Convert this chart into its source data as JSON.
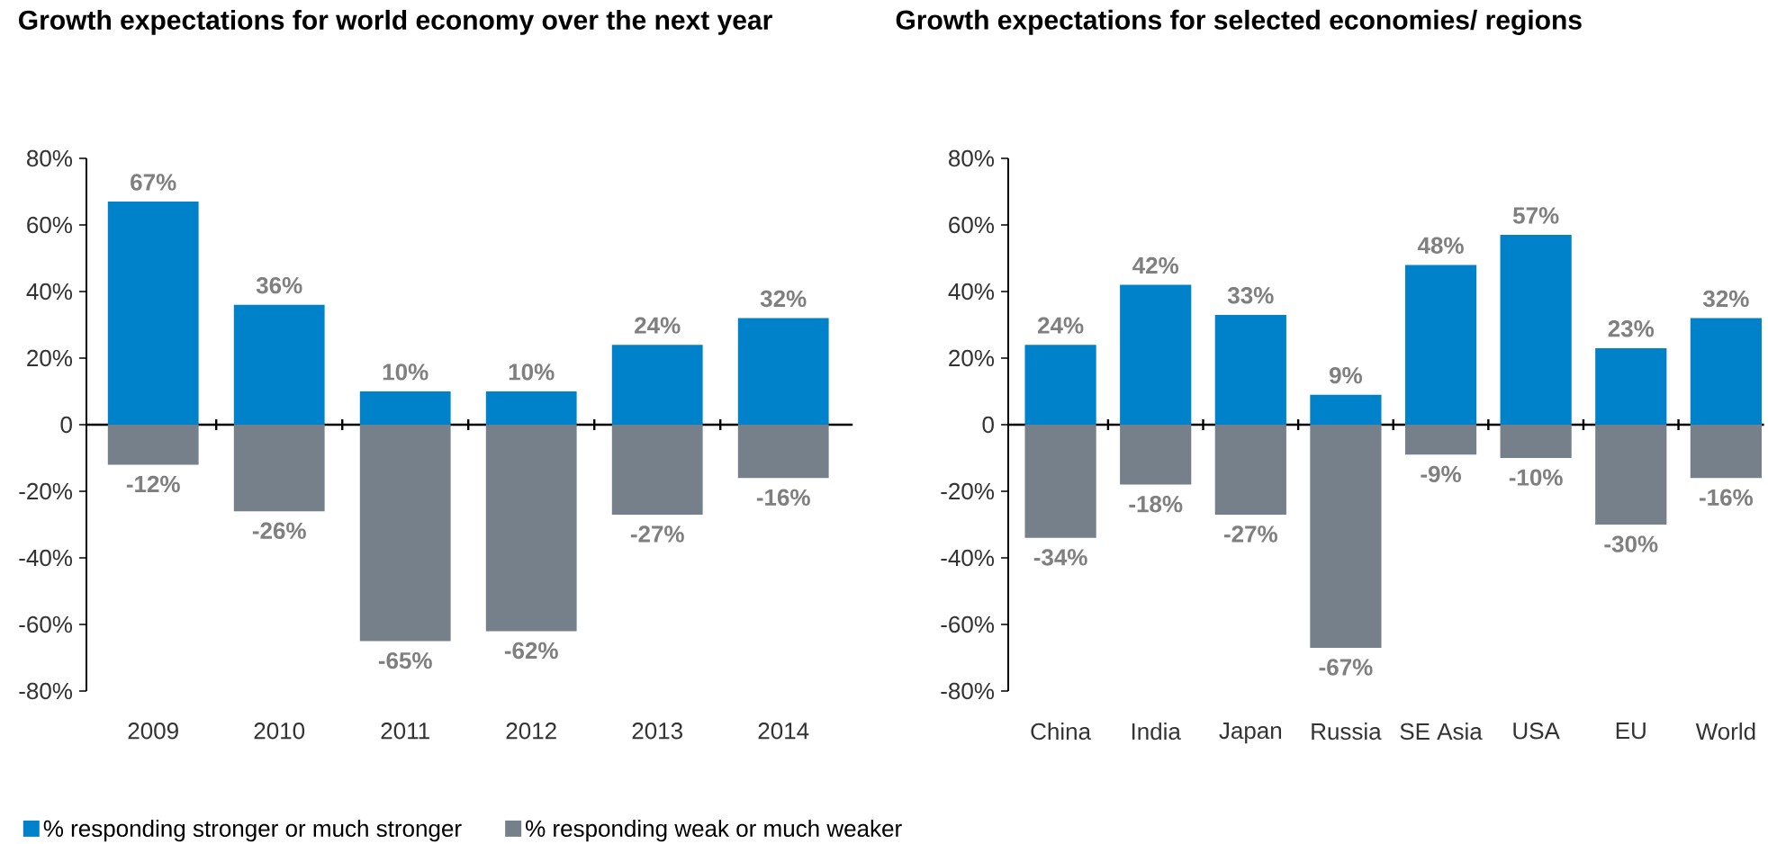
{
  "chart_data": [
    {
      "type": "bar",
      "title": "Growth expectations for world economy over the next year",
      "categories": [
        "2009",
        "2010",
        "2011",
        "2012",
        "2013",
        "2014"
      ],
      "stacked": true,
      "ylim": [
        -80,
        80
      ],
      "yticks": [
        {
          "value": -80,
          "label": "-80%"
        },
        {
          "value": -60,
          "label": "-60%"
        },
        {
          "value": -40,
          "label": "-40%"
        },
        {
          "value": -20,
          "label": "-20%"
        },
        0,
        {
          "value": 20,
          "label": "20%"
        },
        {
          "value": 40,
          "label": "40%"
        },
        {
          "value": 60,
          "label": "60%"
        },
        {
          "value": 80,
          "label": "80%"
        }
      ],
      "legend": "bottom",
      "series": [
        {
          "name": "% responding stronger or much stronger",
          "color": "#0082ca",
          "values": [
            67,
            36,
            10,
            10,
            24,
            32
          ],
          "value_labels": [
            "67%",
            "36%",
            "10%",
            "10%",
            "24%",
            "32%"
          ]
        },
        {
          "name": "% responding weak or much weaker",
          "color": "#76808a",
          "values": [
            -12,
            -26,
            -65,
            -62,
            -27,
            -16
          ],
          "value_labels": [
            "-12%",
            "-26%",
            "-65%",
            "-62%",
            "-27%",
            "-16%"
          ]
        }
      ]
    },
    {
      "type": "bar",
      "title": "Growth expectations for selected economies/ regions",
      "categories": [
        "China",
        "India",
        "Japan",
        "Russia",
        "SE Asia",
        "USA",
        "EU",
        "World"
      ],
      "stacked": true,
      "ylim": [
        -80,
        80
      ],
      "yticks": [
        {
          "value": -80,
          "label": "-80%"
        },
        {
          "value": -60,
          "label": "-60%"
        },
        {
          "value": -40,
          "label": "-40%"
        },
        {
          "value": -20,
          "label": "-20%"
        },
        0,
        {
          "value": 20,
          "label": "20%"
        },
        {
          "value": 40,
          "label": "40%"
        },
        {
          "value": 60,
          "label": "60%"
        },
        {
          "value": 80,
          "label": "80%"
        }
      ],
      "series": [
        {
          "color": "#0082ca",
          "values": [
            24,
            42,
            33,
            9,
            48,
            57,
            23,
            32
          ],
          "value_labels": [
            "24%",
            "42%",
            "33%",
            "9%",
            "48%",
            "57%",
            "23%",
            "32%"
          ]
        },
        {
          "color": "#76808a",
          "values": [
            -34,
            -18,
            -27,
            -67,
            -9,
            -10,
            -30,
            -16
          ],
          "value_labels": [
            "-34%",
            "-18%",
            "-27%",
            "-67%",
            "-9%",
            "-10%",
            "-30%",
            "-16%"
          ]
        }
      ]
    }
  ]
}
